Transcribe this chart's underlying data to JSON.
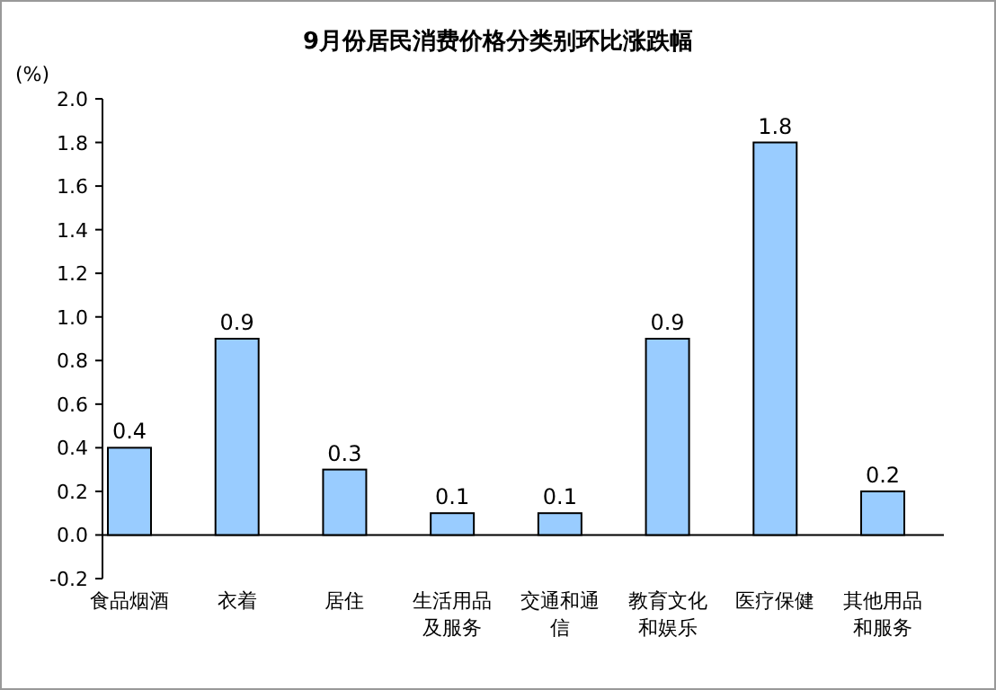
{
  "chart_data": {
    "type": "bar",
    "title": "9月份居民消费价格分类别环比涨跌幅",
    "ylabel": "(%)",
    "categories": [
      "食品烟酒",
      "衣着",
      "居住",
      "生活用品及服务",
      "交通和通信",
      "教育文化和娱乐",
      "医疗保健",
      "其他用品和服务"
    ],
    "values": [
      0.4,
      0.9,
      0.3,
      0.1,
      0.1,
      0.9,
      1.8,
      0.2
    ],
    "color": "#99ccff",
    "data_labels": true,
    "ylim": [
      -0.2,
      2.0
    ],
    "yticks": [
      -0.2,
      {
        "value": 0,
        "label": "0.0"
      },
      0.2,
      0.4,
      0.6,
      0.8,
      {
        "value": 1,
        "label": "1.0"
      },
      1.2,
      1.4,
      1.6,
      1.8,
      {
        "value": 2,
        "label": "2.0"
      }
    ]
  }
}
